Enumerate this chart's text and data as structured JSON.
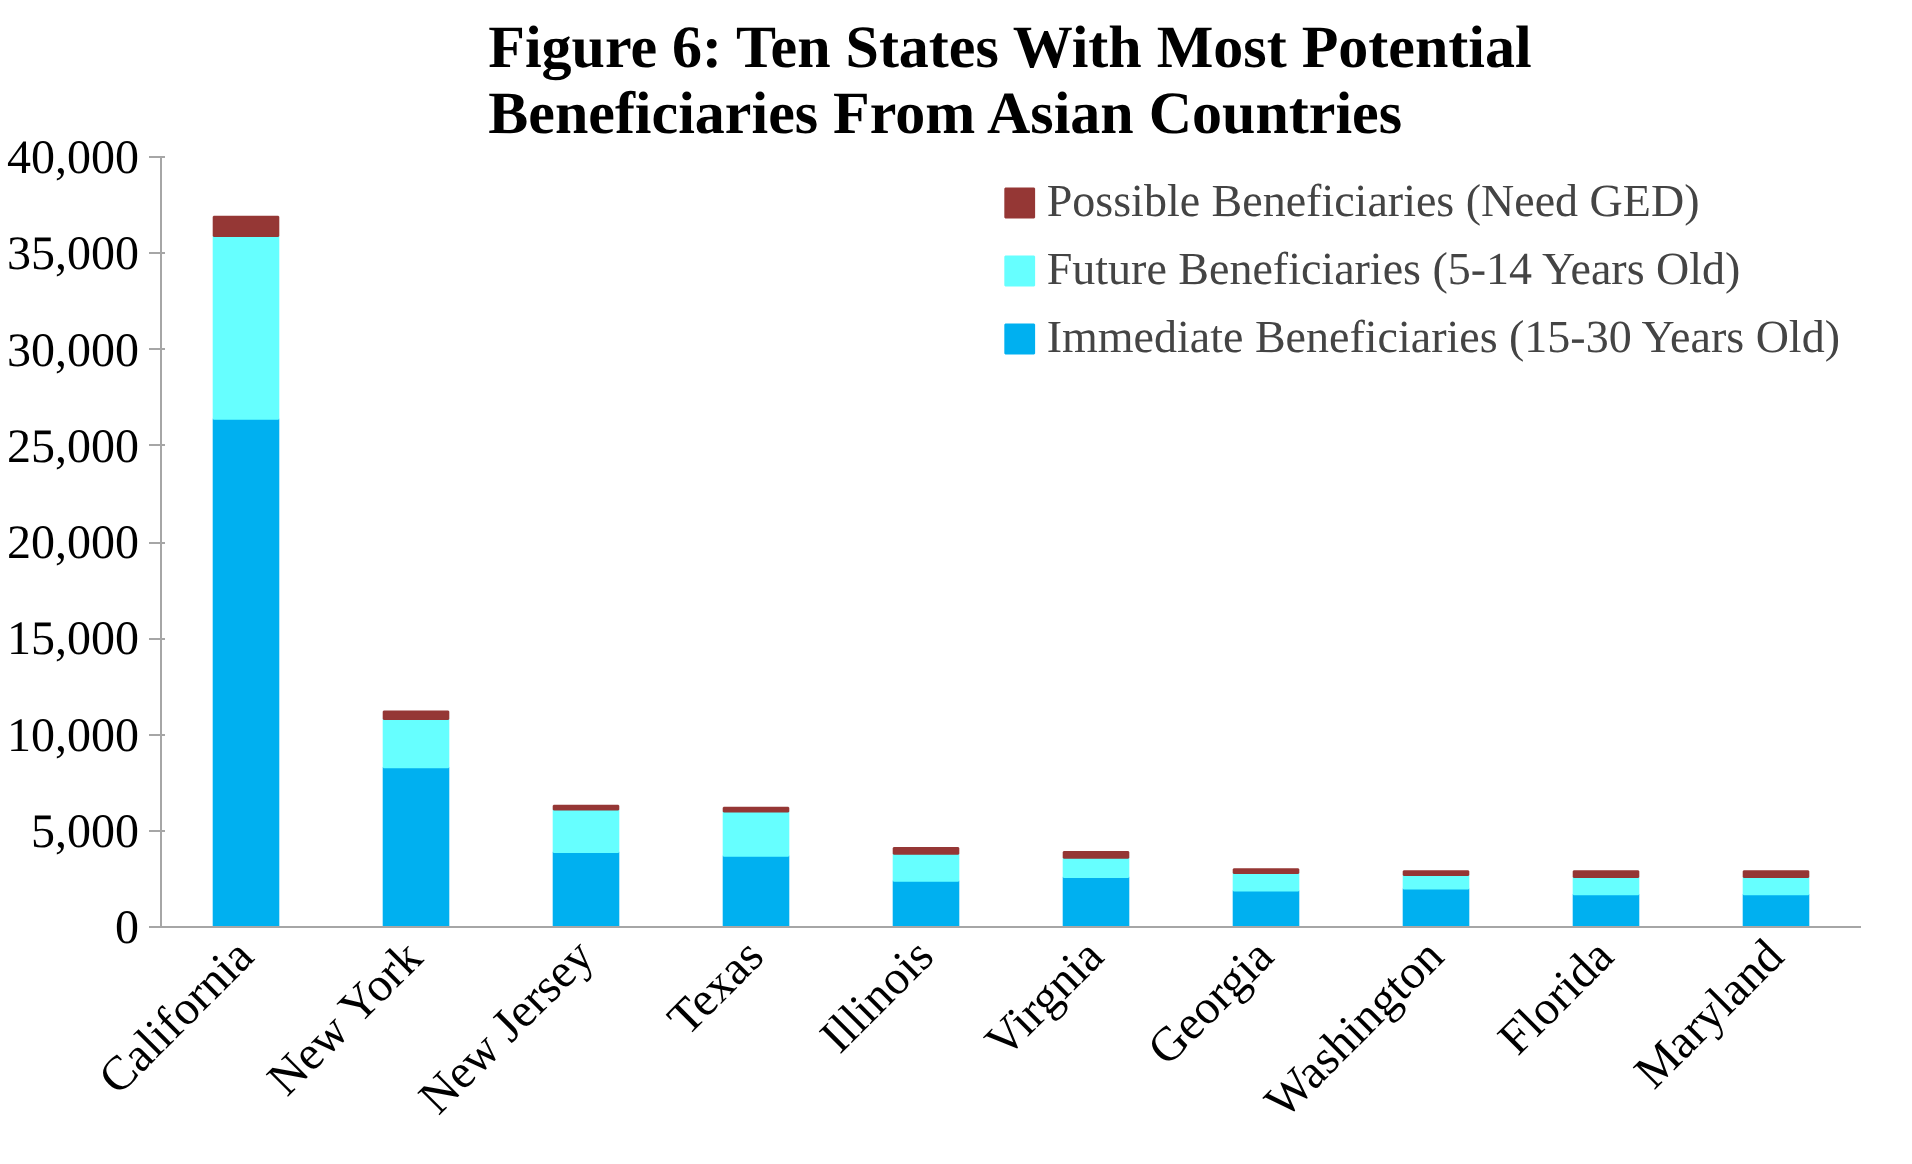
{
  "chart_data": {
    "type": "bar",
    "title": "Figure 6: Ten States With Most Potential Beneficiaries From Asian Countries",
    "categories": [
      "California",
      "New York",
      "New Jersey",
      "Texas",
      "Illinois",
      "Virgnia",
      "Georgia",
      "Washington",
      "Florida",
      "Maryland"
    ],
    "stacked": true,
    "series": [
      {
        "name": "Immediate Beneficiaries (15-30 Years Old)",
        "color": "#00b0f0",
        "values": [
          26400,
          8300,
          3900,
          3700,
          2400,
          2600,
          1900,
          2000,
          1700,
          1700
        ]
      },
      {
        "name": "Future Beneficiaries (5-14 Years Old)",
        "color": "#66ffff",
        "values": [
          9500,
          2500,
          2200,
          2300,
          1400,
          1000,
          900,
          700,
          900,
          900
        ]
      },
      {
        "name": "Possible Beneficiaries (Need GED)",
        "color": "#953735",
        "values": [
          1000,
          400,
          200,
          200,
          300,
          300,
          200,
          200,
          300,
          300
        ]
      }
    ],
    "ylim": [
      0,
      40000
    ],
    "yticks": [
      {
        "value": 0,
        "label": "0"
      },
      {
        "value": 5000,
        "label": "5,000"
      },
      {
        "value": 10000,
        "label": "10,000"
      },
      {
        "value": 15000,
        "label": "15,000"
      },
      {
        "value": 20000,
        "label": "20,000"
      },
      {
        "value": 25000,
        "label": "25,000"
      },
      {
        "value": 30000,
        "label": "30,000"
      },
      {
        "value": 35000,
        "label": "35,000"
      },
      {
        "value": 40000,
        "label": "40,000"
      }
    ],
    "grid": false,
    "legend": "top right"
  }
}
